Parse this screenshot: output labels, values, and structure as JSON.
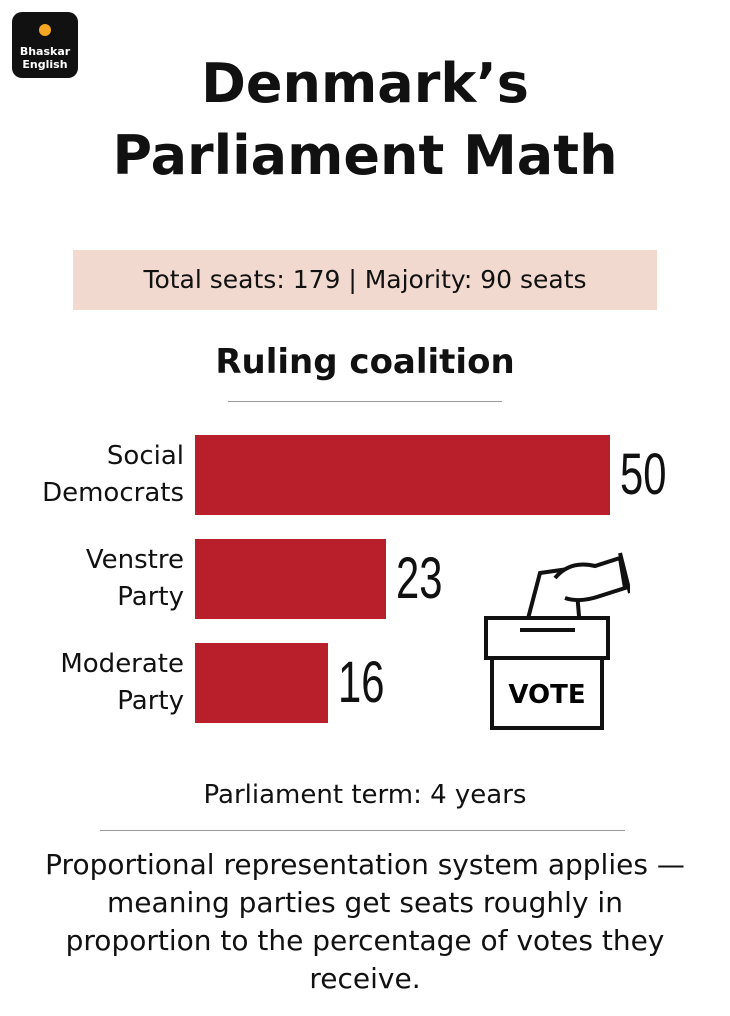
{
  "logo": {
    "line1": "Bhaskar",
    "line2": "English"
  },
  "title": "Denmark’s Parliament Math",
  "info": "Total seats: 179 | Majority: 90 seats",
  "chart_data": {
    "type": "bar",
    "orientation": "horizontal",
    "title": "Ruling coalition",
    "categories": [
      "Social Democrats",
      "Venstre Party",
      "Moderate Party"
    ],
    "values": [
      50,
      23,
      16
    ],
    "color": "#b81f2a"
  },
  "icon_label": "VOTE",
  "term": "Parliament term: 4 years",
  "note": "Proportional representation system applies — meaning parties get seats roughly in proportion to the percentage of votes they receive."
}
